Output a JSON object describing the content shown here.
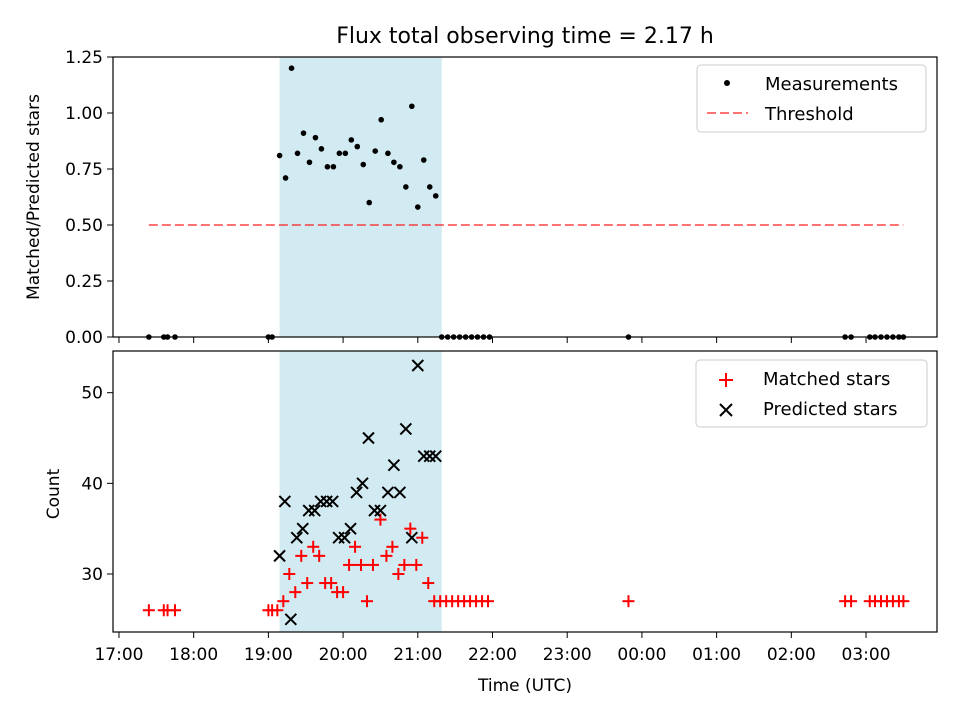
{
  "chart_data": {
    "type": "scatter",
    "title": "Flux total observing time = 2.17 h",
    "shaded_window": {
      "start_hours": 19.15,
      "end_hours": 21.32,
      "color": "#add8e6"
    },
    "x_axis": {
      "label": "Time (UTC)",
      "lim_hours": [
        16.92,
        27.95
      ],
      "ticks": [
        {
          "value": 17,
          "label": "17:00"
        },
        {
          "value": 18,
          "label": "18:00"
        },
        {
          "value": 19,
          "label": "19:00"
        },
        {
          "value": 20,
          "label": "20:00"
        },
        {
          "value": 21,
          "label": "21:00"
        },
        {
          "value": 22,
          "label": "22:00"
        },
        {
          "value": 23,
          "label": "23:00"
        },
        {
          "value": 24,
          "label": "00:00"
        },
        {
          "value": 25,
          "label": "01:00"
        },
        {
          "value": 26,
          "label": "02:00"
        },
        {
          "value": 27,
          "label": "03:00"
        }
      ]
    },
    "top_panel": {
      "ylabel": "Matched/Predicted stars",
      "ylim": [
        0,
        1.25
      ],
      "yticks": [
        {
          "value": 0,
          "label": "0.00"
        },
        {
          "value": 0.25,
          "label": "0.25"
        },
        {
          "value": 0.5,
          "label": "0.50"
        },
        {
          "value": 0.75,
          "label": "0.75"
        },
        {
          "value": 1.0,
          "label": "1.00"
        },
        {
          "value": 1.25,
          "label": "1.25"
        }
      ],
      "legend": {
        "position": "upper right",
        "measurements_label": "Measurements",
        "threshold_label": "Threshold"
      },
      "threshold": {
        "value": 0.5,
        "x_start": 17.4,
        "x_end": 27.5,
        "color": "#ff0000"
      },
      "measurements": [
        [
          17.4,
          0
        ],
        [
          17.6,
          0
        ],
        [
          17.65,
          0
        ],
        [
          17.75,
          0
        ],
        [
          19.0,
          0
        ],
        [
          19.05,
          0
        ],
        [
          19.15,
          0.81
        ],
        [
          19.23,
          0.71
        ],
        [
          19.31,
          1.2
        ],
        [
          19.39,
          0.82
        ],
        [
          19.47,
          0.91
        ],
        [
          19.55,
          0.78
        ],
        [
          19.63,
          0.89
        ],
        [
          19.71,
          0.84
        ],
        [
          19.79,
          0.76
        ],
        [
          19.87,
          0.76
        ],
        [
          19.95,
          0.82
        ],
        [
          20.03,
          0.82
        ],
        [
          20.11,
          0.88
        ],
        [
          20.19,
          0.85
        ],
        [
          20.27,
          0.77
        ],
        [
          20.35,
          0.6
        ],
        [
          20.43,
          0.83
        ],
        [
          20.51,
          0.97
        ],
        [
          20.6,
          0.82
        ],
        [
          20.68,
          0.78
        ],
        [
          20.76,
          0.76
        ],
        [
          20.84,
          0.67
        ],
        [
          20.92,
          1.03
        ],
        [
          21.0,
          0.58
        ],
        [
          21.08,
          0.79
        ],
        [
          21.16,
          0.67
        ],
        [
          21.24,
          0.63
        ],
        [
          21.32,
          0
        ],
        [
          21.4,
          0
        ],
        [
          21.48,
          0
        ],
        [
          21.56,
          0
        ],
        [
          21.64,
          0
        ],
        [
          21.72,
          0
        ],
        [
          21.8,
          0
        ],
        [
          21.88,
          0
        ],
        [
          21.96,
          0
        ],
        [
          23.82,
          0
        ],
        [
          26.72,
          0
        ],
        [
          26.8,
          0
        ],
        [
          27.05,
          0
        ],
        [
          27.12,
          0
        ],
        [
          27.2,
          0
        ],
        [
          27.28,
          0
        ],
        [
          27.36,
          0
        ],
        [
          27.44,
          0
        ],
        [
          27.5,
          0
        ]
      ]
    },
    "bottom_panel": {
      "ylabel": "Count",
      "ylim": [
        23.6,
        54.6
      ],
      "yticks": [
        {
          "value": 30,
          "label": "30"
        },
        {
          "value": 40,
          "label": "40"
        },
        {
          "value": 50,
          "label": "50"
        }
      ],
      "legend": {
        "position": "upper right",
        "matched_label": "Matched stars",
        "predicted_label": "Predicted stars"
      },
      "matched_stars": [
        [
          17.4,
          26
        ],
        [
          17.6,
          26
        ],
        [
          17.65,
          26
        ],
        [
          17.75,
          26
        ],
        [
          19.0,
          26
        ],
        [
          19.05,
          26
        ],
        [
          19.12,
          26
        ],
        [
          19.2,
          27
        ],
        [
          19.28,
          30
        ],
        [
          19.36,
          28
        ],
        [
          19.44,
          32
        ],
        [
          19.52,
          29
        ],
        [
          19.6,
          33
        ],
        [
          19.68,
          32
        ],
        [
          19.76,
          29
        ],
        [
          19.84,
          29
        ],
        [
          19.92,
          28
        ],
        [
          20.0,
          28
        ],
        [
          20.08,
          31
        ],
        [
          20.16,
          33
        ],
        [
          20.24,
          31
        ],
        [
          20.32,
          27
        ],
        [
          20.4,
          31
        ],
        [
          20.5,
          36
        ],
        [
          20.58,
          32
        ],
        [
          20.66,
          33
        ],
        [
          20.74,
          30
        ],
        [
          20.82,
          31
        ],
        [
          20.9,
          35
        ],
        [
          20.98,
          31
        ],
        [
          21.06,
          34
        ],
        [
          21.14,
          29
        ],
        [
          21.22,
          27
        ],
        [
          21.3,
          27
        ],
        [
          21.38,
          27
        ],
        [
          21.46,
          27
        ],
        [
          21.54,
          27
        ],
        [
          21.62,
          27
        ],
        [
          21.7,
          27
        ],
        [
          21.78,
          27
        ],
        [
          21.86,
          27
        ],
        [
          21.94,
          27
        ],
        [
          23.82,
          27
        ],
        [
          26.72,
          27
        ],
        [
          26.8,
          27
        ],
        [
          27.05,
          27
        ],
        [
          27.12,
          27
        ],
        [
          27.2,
          27
        ],
        [
          27.28,
          27
        ],
        [
          27.36,
          27
        ],
        [
          27.44,
          27
        ],
        [
          27.5,
          27
        ]
      ],
      "predicted_stars": [
        [
          19.15,
          32
        ],
        [
          19.22,
          38
        ],
        [
          19.3,
          25
        ],
        [
          19.38,
          34
        ],
        [
          19.46,
          35
        ],
        [
          19.54,
          37
        ],
        [
          19.62,
          37
        ],
        [
          19.7,
          38
        ],
        [
          19.78,
          38
        ],
        [
          19.86,
          38
        ],
        [
          19.94,
          34
        ],
        [
          20.02,
          34
        ],
        [
          20.1,
          35
        ],
        [
          20.18,
          39
        ],
        [
          20.26,
          40
        ],
        [
          20.34,
          45
        ],
        [
          20.42,
          37
        ],
        [
          20.5,
          37
        ],
        [
          20.6,
          39
        ],
        [
          20.68,
          42
        ],
        [
          20.76,
          39
        ],
        [
          20.84,
          46
        ],
        [
          20.92,
          34
        ],
        [
          21.0,
          53
        ],
        [
          21.08,
          43
        ],
        [
          21.16,
          43
        ],
        [
          21.24,
          43
        ]
      ]
    }
  }
}
